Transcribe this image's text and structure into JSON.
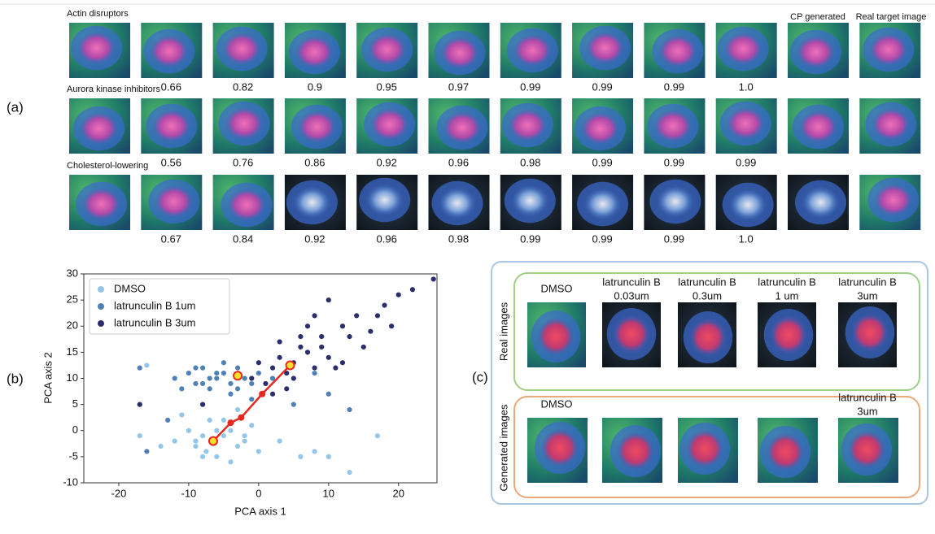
{
  "panel_a": {
    "label": "(a)",
    "column_headers": [
      "CP generated",
      "Real target image"
    ],
    "rows": [
      {
        "label": "Actin disruptors",
        "scores": [
          "0.66",
          "0.82",
          "0.9",
          "0.95",
          "0.97",
          "0.99",
          "0.99",
          "0.99",
          "1.0"
        ]
      },
      {
        "label": "Aurora kinase inhibitors",
        "scores": [
          "0.56",
          "0.76",
          "0.86",
          "0.92",
          "0.96",
          "0.98",
          "0.99",
          "0.99",
          "0.99"
        ]
      },
      {
        "label": "Cholesterol-lowering",
        "scores": [
          "0.67",
          "0.84",
          "0.92",
          "0.96",
          "0.98",
          "0.99",
          "0.99",
          "0.99",
          "1.0"
        ]
      }
    ]
  },
  "panel_b": {
    "label": "(b)"
  },
  "chart_data": {
    "type": "scatter",
    "x_label": "PCA axis 1",
    "y_label": "PCA axis 2",
    "xlim": [
      -25,
      25.5
    ],
    "ylim": [
      -10,
      30
    ],
    "xticks": [
      -20,
      -10,
      0,
      10,
      20
    ],
    "yticks": [
      -10,
      -5,
      0,
      5,
      10,
      15,
      20,
      25,
      30
    ],
    "legend": "upper left",
    "series": [
      {
        "name": "DMSO",
        "color": "#93c6ea",
        "x": [
          -12,
          -10,
          -9,
          -8,
          -7.5,
          -7,
          -6,
          -5,
          -4,
          -3,
          -2,
          -1,
          0,
          -11,
          -9,
          -6,
          -4,
          -8,
          -5,
          -2,
          -14,
          -17,
          3,
          6,
          10,
          13,
          17,
          -16,
          8,
          -3
        ],
        "values": [
          -2,
          0,
          -3,
          -1,
          -4,
          2,
          -5,
          -1,
          0,
          -3,
          -2,
          1,
          -4,
          3,
          -2,
          0,
          -6,
          -5,
          2,
          -1,
          -3,
          -1,
          -2,
          -5,
          -5,
          -8,
          -1,
          12.5,
          -4,
          4
        ]
      },
      {
        "name": "latrunculin B 1um",
        "color": "#4f80b8",
        "x": [
          -12,
          -10,
          -9,
          -8,
          -7,
          -6,
          -5,
          -4,
          -3,
          -2,
          -1,
          0,
          -11,
          -9,
          -7,
          -5,
          -3,
          -6,
          -8,
          -4,
          2,
          5,
          10,
          13,
          -17,
          -16,
          -13,
          3,
          8,
          -1
        ],
        "values": [
          10,
          11,
          9,
          12,
          8,
          10,
          11,
          9,
          12,
          10,
          9,
          11,
          8,
          12,
          10,
          13,
          8,
          11,
          9,
          7,
          10,
          5,
          7,
          4,
          12,
          -4,
          2,
          14,
          11,
          6
        ]
      },
      {
        "name": "latrunculin B 3um",
        "color": "#2b2e6c",
        "x": [
          1,
          2,
          3,
          4,
          5,
          6,
          7,
          8,
          9,
          10,
          12,
          14,
          16,
          18,
          20,
          22,
          25,
          3,
          5,
          7,
          9,
          11,
          13,
          -1,
          0,
          6,
          8,
          4,
          15,
          -8,
          -17,
          10,
          12,
          17,
          2,
          19
        ],
        "values": [
          9,
          12,
          14,
          11,
          13,
          16,
          15,
          12,
          18,
          14,
          20,
          22,
          19,
          24,
          26,
          27,
          29,
          17,
          10,
          20,
          16,
          12,
          18,
          10,
          13,
          18,
          22,
          8,
          16,
          5,
          5,
          25,
          13,
          22,
          7,
          20
        ]
      }
    ],
    "trajectory": {
      "color": "#e8281e",
      "x": [
        -6.5,
        -4,
        -2.5,
        0.5,
        4.5
      ],
      "values": [
        -2,
        1.5,
        2.5,
        7,
        12.5
      ]
    },
    "highlighted": {
      "color": "#f5e12a",
      "x": [
        -6.5,
        -3,
        4.5
      ],
      "values": [
        -2,
        10.5,
        12.5
      ]
    }
  },
  "panel_c": {
    "label": "(c)",
    "real_images": {
      "label": "Real images",
      "columns": [
        [
          "DMSO"
        ],
        [
          "latrunculin B",
          "0.03um"
        ],
        [
          "latrunculin B",
          "0.3um"
        ],
        [
          "latrunculin B",
          "1 um"
        ],
        [
          "latrunculin B",
          "3um"
        ]
      ]
    },
    "generated_images": {
      "label": "Generated images",
      "columns": [
        [
          "DMSO"
        ],
        [
          "latrunculin B",
          "3um"
        ]
      ]
    }
  }
}
